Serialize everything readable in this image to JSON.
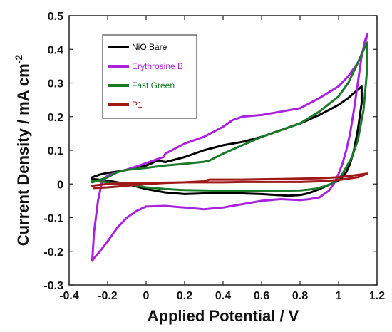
{
  "chart_data": {
    "type": "line",
    "xlabel": "Applied Potential / V",
    "ylabel": "Current Density / mA cm",
    "ylabel_superscript": "-2",
    "xlim": [
      -0.4,
      1.2
    ],
    "ylim": [
      -0.3,
      0.5
    ],
    "xticks": [
      -0.4,
      -0.2,
      0,
      0.2,
      0.4,
      0.6,
      0.8,
      1,
      1.2
    ],
    "yticks": [
      -0.3,
      -0.2,
      -0.1,
      0,
      0.1,
      0.2,
      0.3,
      0.4,
      0.5
    ],
    "xtick_labels": [
      "-0.4",
      "-0.2",
      "0",
      "0.2",
      "0.4",
      "0.6",
      "0.8",
      "1",
      "1.2"
    ],
    "ytick_labels": [
      "-0.3",
      "-0.2",
      "-0.1",
      "0",
      "0.1",
      "0.2",
      "0.3",
      "0.4",
      "0.5"
    ],
    "grid": false,
    "legend": "top-left",
    "series": [
      {
        "name": "NiO Bare",
        "color": "#000000",
        "x": [
          0.06,
          0.1,
          0.2,
          0.3,
          0.4,
          0.5,
          0.6,
          0.7,
          0.8,
          0.9,
          1.0,
          1.05,
          1.1,
          1.12,
          1.12,
          1.1,
          1.08,
          1.06,
          1.04,
          1.02,
          1.0,
          0.96,
          0.92,
          0.88,
          0.84,
          0.8,
          0.74,
          0.68,
          0.6,
          0.5,
          0.4,
          0.3,
          0.2,
          0.1,
          0.0,
          -0.1,
          -0.2,
          -0.28,
          -0.28,
          -0.24,
          -0.2,
          -0.15,
          -0.1,
          -0.05,
          0.0,
          0.03,
          0.06
        ],
        "y": [
          0.07,
          0.065,
          0.08,
          0.1,
          0.115,
          0.125,
          0.14,
          0.16,
          0.18,
          0.205,
          0.235,
          0.255,
          0.28,
          0.29,
          0.24,
          0.16,
          0.1,
          0.06,
          0.035,
          0.02,
          0.01,
          0.0,
          -0.01,
          -0.02,
          -0.028,
          -0.033,
          -0.035,
          -0.033,
          -0.03,
          -0.028,
          -0.027,
          -0.028,
          -0.03,
          -0.025,
          -0.015,
          0.0,
          0.01,
          0.015,
          0.02,
          0.028,
          0.033,
          0.037,
          0.042,
          0.048,
          0.055,
          0.062,
          0.07
        ]
      },
      {
        "name": "Erythrosine B",
        "color": "#aa22dd",
        "x": [
          0.09,
          0.05,
          0.0,
          -0.05,
          -0.1,
          -0.15,
          -0.2,
          -0.23,
          -0.25,
          -0.27,
          -0.28,
          -0.27,
          -0.24,
          -0.2,
          -0.15,
          -0.1,
          -0.05,
          0.0,
          0.1,
          0.2,
          0.3,
          0.4,
          0.5,
          0.6,
          0.7,
          0.8,
          0.85,
          0.9,
          0.95,
          0.98,
          1.0,
          1.02,
          1.04,
          1.06,
          1.08,
          1.1,
          1.12,
          1.14,
          1.15,
          1.13,
          1.1,
          1.05,
          1.0,
          0.9,
          0.8,
          0.7,
          0.6,
          0.5,
          0.45,
          0.4,
          0.3,
          0.2,
          0.1,
          0.09
        ],
        "y": [
          0.08,
          0.072,
          0.062,
          0.052,
          0.043,
          0.035,
          0.025,
          0.005,
          -0.05,
          -0.14,
          -0.228,
          -0.22,
          -0.2,
          -0.17,
          -0.13,
          -0.1,
          -0.08,
          -0.067,
          -0.065,
          -0.07,
          -0.075,
          -0.07,
          -0.06,
          -0.05,
          -0.045,
          -0.048,
          -0.045,
          -0.04,
          -0.02,
          0.005,
          0.03,
          0.06,
          0.1,
          0.15,
          0.22,
          0.3,
          0.38,
          0.43,
          0.445,
          0.4,
          0.36,
          0.32,
          0.29,
          0.255,
          0.225,
          0.215,
          0.205,
          0.2,
          0.19,
          0.17,
          0.14,
          0.12,
          0.09,
          0.08
        ]
      },
      {
        "name": "Fast Green",
        "color": "#1a7a2a",
        "x": [
          0.33,
          0.4,
          0.5,
          0.6,
          0.7,
          0.8,
          0.9,
          1.0,
          1.05,
          1.1,
          1.14,
          1.15,
          1.15,
          1.13,
          1.1,
          1.07,
          1.04,
          1.02,
          1.0,
          0.96,
          0.92,
          0.88,
          0.84,
          0.8,
          0.7,
          0.6,
          0.5,
          0.4,
          0.3,
          0.2,
          0.1,
          0.0,
          -0.1,
          -0.2,
          -0.28,
          -0.28,
          -0.2,
          -0.15,
          -0.1,
          0.0,
          0.1,
          0.2,
          0.3,
          0.33
        ],
        "y": [
          0.07,
          0.09,
          0.115,
          0.14,
          0.16,
          0.18,
          0.215,
          0.26,
          0.3,
          0.36,
          0.41,
          0.42,
          0.35,
          0.22,
          0.13,
          0.08,
          0.05,
          0.03,
          0.015,
          0.0,
          -0.008,
          -0.014,
          -0.017,
          -0.019,
          -0.02,
          -0.02,
          -0.02,
          -0.02,
          -0.019,
          -0.018,
          -0.015,
          -0.01,
          0.0,
          0.005,
          0.01,
          0.005,
          0.02,
          0.035,
          0.042,
          0.048,
          0.055,
          0.06,
          0.066,
          0.07
        ]
      },
      {
        "name": "P1",
        "color": "#a01818",
        "x": [
          -0.27,
          -0.2,
          -0.1,
          0.0,
          0.1,
          0.2,
          0.3,
          0.33,
          0.4,
          0.5,
          0.6,
          0.7,
          0.8,
          0.9,
          1.0,
          1.1,
          1.15,
          1.1,
          1.0,
          0.9,
          0.8,
          0.7,
          0.6,
          0.5,
          0.4,
          0.3,
          0.2,
          0.1,
          0.0,
          -0.1,
          -0.2,
          -0.28
        ],
        "y": [
          -0.012,
          -0.01,
          -0.005,
          0.0,
          0.003,
          0.005,
          0.008,
          0.013,
          0.013,
          0.013,
          0.014,
          0.015,
          0.016,
          0.017,
          0.02,
          0.027,
          0.031,
          0.02,
          0.012,
          0.008,
          0.006,
          0.006,
          0.006,
          0.006,
          0.005,
          0.005,
          0.005,
          0.004,
          0.003,
          0.002,
          0.0,
          -0.005
        ]
      }
    ]
  }
}
